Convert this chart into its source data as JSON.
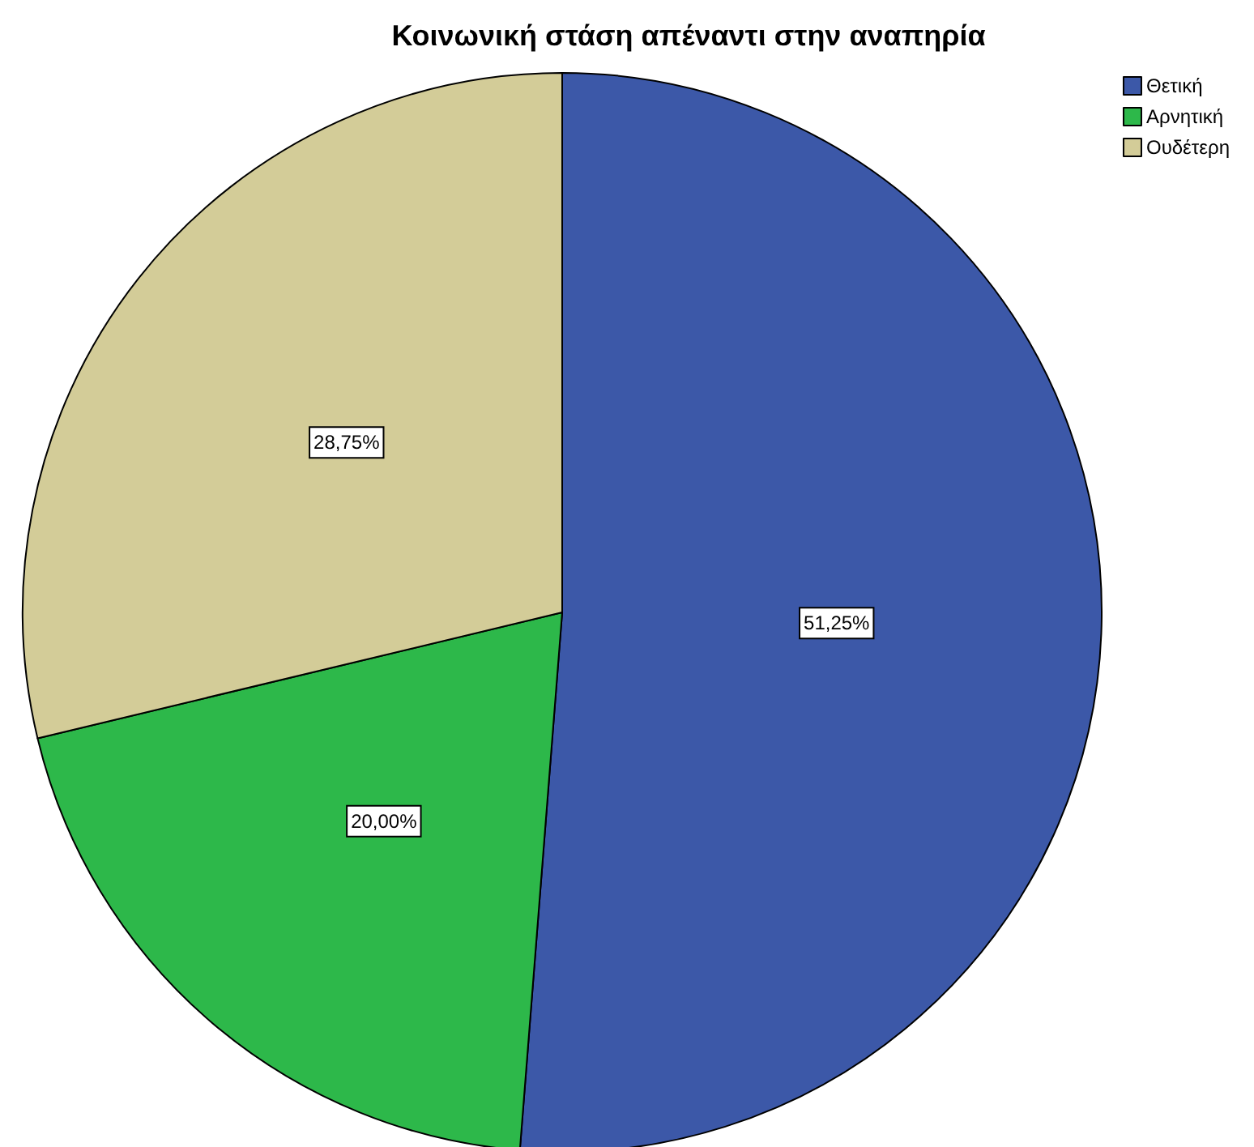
{
  "chart_data": {
    "type": "pie",
    "title": "Κοινωνική στάση απέναντι στην αναπηρία",
    "categories": [
      "Θετική",
      "Αρνητική",
      "Ουδέτερη"
    ],
    "values": [
      51.25,
      20,
      28.75
    ],
    "colors": [
      "#3c58a8",
      "#2db84a",
      "#d3cc98"
    ],
    "value_labels": [
      "51,25%",
      "20,00%",
      "28,75%"
    ],
    "legend": "top right"
  }
}
